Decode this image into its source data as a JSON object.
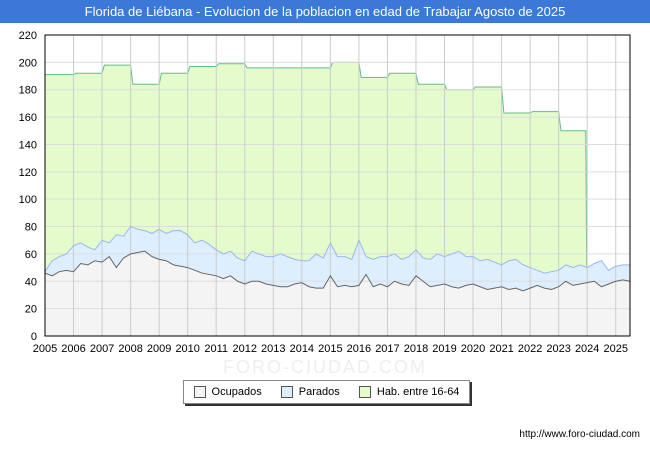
{
  "title": "Florida de Liébana - Evolucion de la poblacion en edad de Trabajar Agosto de 2025",
  "url": "http://www.foro-ciudad.com",
  "watermark": "FORO-CIUDAD.COM",
  "chart_data": {
    "type": "area",
    "title": "Florida de Liébana - Evolucion de la poblacion en edad de Trabajar Agosto de 2025",
    "xlim": [
      2005,
      2025.5
    ],
    "ylim": [
      0,
      220
    ],
    "yticks": [
      0,
      20,
      40,
      60,
      80,
      100,
      120,
      140,
      160,
      180,
      200,
      220
    ],
    "xticks": [
      2005,
      2006,
      2007,
      2008,
      2009,
      2010,
      2011,
      2012,
      2013,
      2014,
      2015,
      2016,
      2017,
      2018,
      2019,
      2020,
      2021,
      2022,
      2023,
      2024,
      2025
    ],
    "legend": [
      "Ocupados",
      "Parados",
      "Hab. entre 16-64"
    ],
    "legend_position": "bottom",
    "colors": {
      "ocupados": "#f4f4f4",
      "ocupados_line": "#666666",
      "parados": "#ddeeff",
      "parados_line": "#99b8ee",
      "hab": "#e4fccc",
      "hab_line": "#66bb88"
    },
    "hab": {
      "years": [
        2005,
        2006,
        2007,
        2008,
        2009,
        2010,
        2011,
        2012,
        2013,
        2014,
        2015,
        2016,
        2017,
        2018,
        2019,
        2020,
        2021,
        2022,
        2023
      ],
      "values": [
        191,
        192,
        198,
        184,
        192,
        197,
        199,
        196,
        196,
        196,
        200,
        189,
        192,
        184,
        180,
        182,
        163,
        164,
        150
      ]
    },
    "quarterly_start": 2005,
    "quarterly_step": 0.25,
    "ocupados": [
      46,
      44,
      47,
      48,
      47,
      53,
      52,
      55,
      54,
      58,
      50,
      57,
      60,
      61,
      62,
      58,
      56,
      55,
      52,
      51,
      50,
      48,
      46,
      45,
      44,
      42,
      44,
      40,
      38,
      40,
      40,
      38,
      37,
      36,
      36,
      38,
      39,
      36,
      35,
      35,
      44,
      36,
      37,
      36,
      37,
      45,
      36,
      38,
      36,
      40,
      38,
      37,
      44,
      40,
      36,
      37,
      38,
      36,
      35,
      37,
      38,
      36,
      34,
      35,
      36,
      34,
      35,
      33,
      35,
      37,
      35,
      34,
      36,
      40,
      37,
      38,
      39,
      40,
      36,
      38,
      40,
      41,
      40
    ],
    "parados": [
      1,
      11,
      11,
      12,
      19,
      15,
      13,
      8,
      16,
      10,
      24,
      16,
      20,
      17,
      15,
      17,
      22,
      20,
      25,
      26,
      24,
      20,
      24,
      22,
      19,
      18,
      18,
      17,
      17,
      22,
      20,
      20,
      21,
      24,
      22,
      18,
      16,
      19,
      25,
      22,
      24,
      22,
      21,
      20,
      33,
      13,
      20,
      20,
      22,
      20,
      18,
      21,
      19,
      17,
      20,
      23,
      20,
      24,
      27,
      21,
      20,
      19,
      22,
      19,
      16,
      21,
      21,
      19,
      15,
      11,
      11,
      13,
      12,
      12,
      13,
      14,
      11,
      13,
      19,
      10,
      11,
      11,
      12
    ]
  }
}
